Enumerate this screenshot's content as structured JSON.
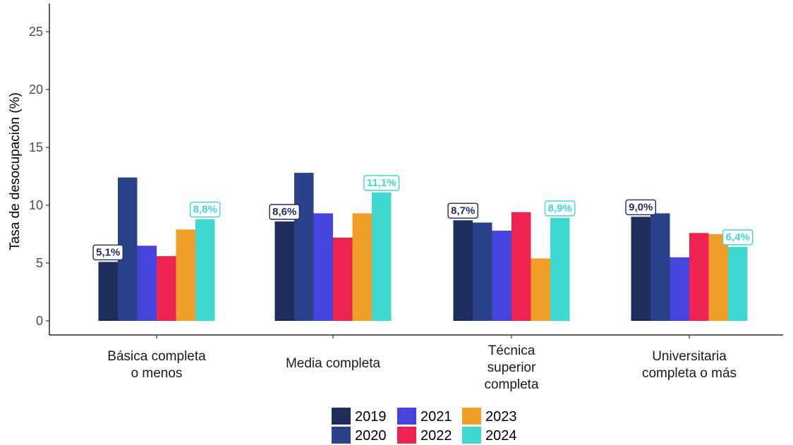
{
  "chart_data": {
    "type": "bar",
    "title": "",
    "xlabel": "",
    "ylabel": "Tasa de desocupación (%)",
    "ylim": [
      0,
      26
    ],
    "yticks": [
      0,
      5,
      10,
      15,
      20,
      25
    ],
    "grid": false,
    "legend_position": "bottom",
    "categories": [
      [
        "Básica completa",
        "o menos"
      ],
      [
        "Media completa"
      ],
      [
        "Técnica",
        "superior",
        "completa"
      ],
      [
        "Universitaria",
        "completa o más"
      ]
    ],
    "series": [
      {
        "name": "2019",
        "color": "#1f2d5c",
        "values": [
          5.1,
          8.6,
          8.7,
          9.0
        ]
      },
      {
        "name": "2020",
        "color": "#2a4189",
        "values": [
          12.4,
          12.8,
          8.5,
          9.3
        ]
      },
      {
        "name": "2021",
        "color": "#4545dd",
        "values": [
          6.5,
          9.3,
          7.8,
          5.5
        ]
      },
      {
        "name": "2022",
        "color": "#ef2351",
        "values": [
          5.6,
          7.2,
          9.4,
          7.6
        ]
      },
      {
        "name": "2023",
        "color": "#f0a028",
        "values": [
          7.9,
          9.3,
          5.4,
          7.5
        ]
      },
      {
        "name": "2024",
        "color": "#40d9cf",
        "values": [
          8.8,
          11.1,
          8.9,
          6.4
        ]
      }
    ],
    "annotations": [
      {
        "series": 0,
        "category": 0,
        "text": "5,1%",
        "color": "#1f2d5c"
      },
      {
        "series": 0,
        "category": 1,
        "text": "8,6%",
        "color": "#1f2d5c"
      },
      {
        "series": 0,
        "category": 2,
        "text": "8,7%",
        "color": "#1f2d5c"
      },
      {
        "series": 0,
        "category": 3,
        "text": "9,0%",
        "color": "#1f2d5c"
      },
      {
        "series": 5,
        "category": 0,
        "text": "8,8%",
        "color": "#40d9cf"
      },
      {
        "series": 5,
        "category": 1,
        "text": "11,1%",
        "color": "#40d9cf"
      },
      {
        "series": 5,
        "category": 2,
        "text": "8,9%",
        "color": "#40d9cf"
      },
      {
        "series": 5,
        "category": 3,
        "text": "6,4%",
        "color": "#40d9cf"
      }
    ]
  }
}
